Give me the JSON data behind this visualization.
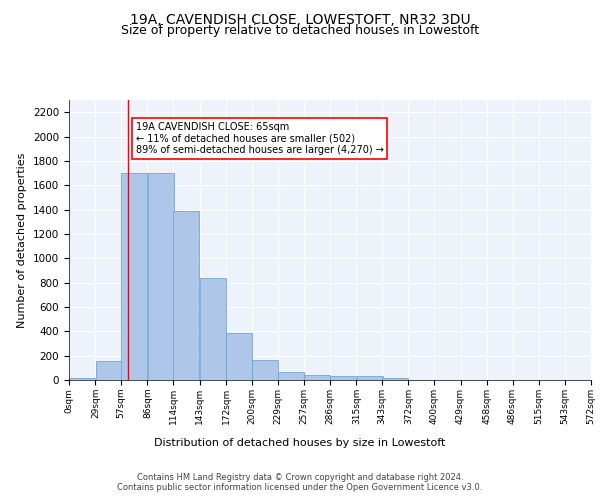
{
  "title": "19A, CAVENDISH CLOSE, LOWESTOFT, NR32 3DU",
  "subtitle": "Size of property relative to detached houses in Lowestoft",
  "xlabel": "Distribution of detached houses by size in Lowestoft",
  "ylabel": "Number of detached properties",
  "bar_values": [
    20,
    155,
    1700,
    1700,
    1390,
    835,
    385,
    165,
    65,
    40,
    30,
    30,
    20,
    0,
    0,
    0,
    0,
    0,
    0
  ],
  "bin_edges": [
    0,
    29,
    57,
    86,
    114,
    143,
    172,
    200,
    229,
    257,
    286,
    315,
    343,
    372,
    400,
    429,
    458,
    486,
    515,
    543
  ],
  "tick_labels": [
    "0sqm",
    "29sqm",
    "57sqm",
    "86sqm",
    "114sqm",
    "143sqm",
    "172sqm",
    "200sqm",
    "229sqm",
    "257sqm",
    "286sqm",
    "315sqm",
    "343sqm",
    "372sqm",
    "400sqm",
    "429sqm",
    "458sqm",
    "486sqm",
    "515sqm",
    "543sqm",
    "572sqm"
  ],
  "bar_color": "#aec6e8",
  "bar_edge_color": "#5a9fd4",
  "property_line_x": 65,
  "property_line_color": "red",
  "annotation_text": "19A CAVENDISH CLOSE: 65sqm\n← 11% of detached houses are smaller (502)\n89% of semi-detached houses are larger (4,270) →",
  "annotation_box_color": "white",
  "annotation_box_edge": "red",
  "ylim": [
    0,
    2300
  ],
  "yticks": [
    0,
    200,
    400,
    600,
    800,
    1000,
    1200,
    1400,
    1600,
    1800,
    2000,
    2200
  ],
  "footer_text": "Contains HM Land Registry data © Crown copyright and database right 2024.\nContains public sector information licensed under the Open Government Licence v3.0.",
  "bg_color": "#eef2fb",
  "plot_bg_color": "#eef2fb",
  "title_fontsize": 10,
  "subtitle_fontsize": 9,
  "tick_fontsize": 6.5,
  "ylabel_fontsize": 8,
  "xlabel_fontsize": 8
}
